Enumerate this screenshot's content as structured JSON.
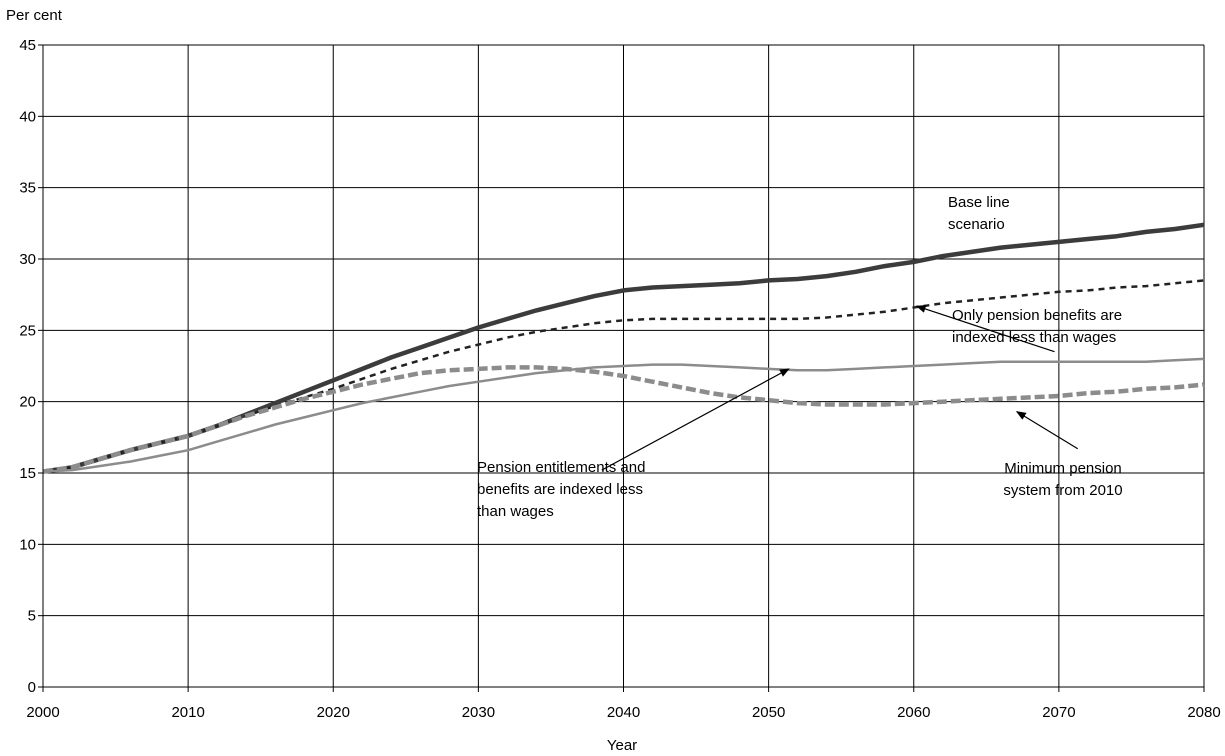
{
  "chart_data": {
    "type": "line",
    "title": "",
    "ylabel": "Per cent",
    "xlabel": "Year",
    "xlim": [
      2000,
      2080
    ],
    "ylim": [
      0,
      45
    ],
    "x_ticks": [
      2000,
      2010,
      2020,
      2030,
      2040,
      2050,
      2060,
      2070,
      2080
    ],
    "y_ticks": [
      0,
      5,
      10,
      15,
      20,
      25,
      30,
      35,
      40,
      45
    ],
    "x_tick_labels": [
      "2000",
      "2010",
      "2020",
      "2030",
      "2040",
      "2050",
      "2060",
      "2070",
      "2080"
    ],
    "y_tick_labels": [
      "0",
      "5",
      "10",
      "15",
      "20",
      "25",
      "30",
      "35",
      "40",
      "45"
    ],
    "grid": true,
    "legend": "none",
    "series": [
      {
        "key": "baseline",
        "color": "#3c3c3c",
        "style": "solid-thick",
        "x": [
          2000,
          2002,
          2004,
          2006,
          2008,
          2010,
          2012,
          2014,
          2016,
          2018,
          2020,
          2022,
          2024,
          2026,
          2028,
          2030,
          2032,
          2034,
          2036,
          2038,
          2040,
          2042,
          2044,
          2046,
          2048,
          2050,
          2052,
          2054,
          2056,
          2058,
          2060,
          2062,
          2064,
          2066,
          2068,
          2070,
          2072,
          2074,
          2076,
          2078,
          2080
        ],
        "values": [
          15.1,
          15.4,
          16.0,
          16.6,
          17.1,
          17.6,
          18.3,
          19.1,
          19.9,
          20.7,
          21.5,
          22.3,
          23.1,
          23.8,
          24.5,
          25.2,
          25.8,
          26.4,
          26.9,
          27.4,
          27.8,
          28.0,
          28.1,
          28.2,
          28.3,
          28.5,
          28.6,
          28.8,
          29.1,
          29.5,
          29.8,
          30.2,
          30.5,
          30.8,
          31.0,
          31.2,
          31.4,
          31.6,
          31.9,
          32.1,
          32.4
        ]
      },
      {
        "key": "only-pension-benefits",
        "color": "#222222",
        "style": "dotted",
        "x": [
          2000,
          2002,
          2004,
          2006,
          2008,
          2010,
          2012,
          2014,
          2016,
          2018,
          2020,
          2022,
          2024,
          2026,
          2028,
          2030,
          2032,
          2034,
          2036,
          2038,
          2040,
          2042,
          2044,
          2046,
          2048,
          2050,
          2052,
          2054,
          2056,
          2058,
          2060,
          2062,
          2064,
          2066,
          2068,
          2070,
          2072,
          2074,
          2076,
          2078,
          2080
        ],
        "values": [
          15.1,
          15.4,
          16.0,
          16.6,
          17.1,
          17.6,
          18.3,
          19.0,
          19.7,
          20.3,
          20.9,
          21.6,
          22.3,
          22.9,
          23.5,
          24.0,
          24.5,
          24.9,
          25.2,
          25.5,
          25.7,
          25.8,
          25.8,
          25.8,
          25.8,
          25.8,
          25.8,
          25.9,
          26.1,
          26.3,
          26.6,
          26.9,
          27.1,
          27.3,
          27.5,
          27.7,
          27.8,
          28.0,
          28.1,
          28.3,
          28.5
        ]
      },
      {
        "key": "pension-entitlements-and-benefits",
        "color": "#8c8c8c",
        "style": "solid",
        "x": [
          2000,
          2002,
          2004,
          2006,
          2008,
          2010,
          2012,
          2014,
          2016,
          2018,
          2020,
          2022,
          2024,
          2026,
          2028,
          2030,
          2032,
          2034,
          2036,
          2038,
          2040,
          2042,
          2044,
          2046,
          2048,
          2050,
          2052,
          2054,
          2056,
          2058,
          2060,
          2062,
          2064,
          2066,
          2068,
          2070,
          2072,
          2074,
          2076,
          2078,
          2080
        ],
        "values": [
          15.1,
          15.2,
          15.5,
          15.8,
          16.2,
          16.6,
          17.2,
          17.8,
          18.4,
          18.9,
          19.4,
          19.9,
          20.3,
          20.7,
          21.1,
          21.4,
          21.7,
          22.0,
          22.2,
          22.4,
          22.5,
          22.6,
          22.6,
          22.5,
          22.4,
          22.3,
          22.2,
          22.2,
          22.3,
          22.4,
          22.5,
          22.6,
          22.7,
          22.8,
          22.8,
          22.8,
          22.8,
          22.8,
          22.8,
          22.9,
          23.0
        ]
      },
      {
        "key": "minimum-pension-system",
        "color": "#8c8c8c",
        "style": "dashed-thick",
        "x": [
          2000,
          2002,
          2004,
          2006,
          2008,
          2010,
          2012,
          2014,
          2016,
          2018,
          2020,
          2022,
          2024,
          2026,
          2028,
          2030,
          2032,
          2034,
          2036,
          2038,
          2040,
          2042,
          2044,
          2046,
          2048,
          2050,
          2052,
          2054,
          2056,
          2058,
          2060,
          2062,
          2064,
          2066,
          2068,
          2070,
          2072,
          2074,
          2076,
          2078,
          2080
        ],
        "values": [
          15.1,
          15.4,
          16.0,
          16.6,
          17.1,
          17.6,
          18.3,
          19.0,
          19.6,
          20.2,
          20.7,
          21.2,
          21.6,
          22.0,
          22.2,
          22.3,
          22.4,
          22.4,
          22.3,
          22.1,
          21.8,
          21.4,
          21.0,
          20.6,
          20.3,
          20.1,
          19.9,
          19.8,
          19.8,
          19.8,
          19.9,
          20.0,
          20.1,
          20.2,
          20.3,
          20.4,
          20.6,
          20.7,
          20.9,
          21.0,
          21.2
        ]
      }
    ],
    "annotations": [
      {
        "key": "baseline",
        "lines": [
          "Base line",
          "scenario"
        ],
        "arrow": null
      },
      {
        "key": "only-pension-benefits",
        "lines": [
          "Only pension benefits are",
          "indexed less than wages"
        ],
        "arrow": {
          "from": [
            2069.7,
            23.5
          ],
          "to": [
            2060.2,
            26.7
          ]
        }
      },
      {
        "key": "pension-entitlements-and-benefits",
        "lines": [
          "Pension entitlements and",
          "benefits are indexed less",
          "than wages"
        ],
        "arrow": {
          "from": [
            2038.5,
            15.2
          ],
          "to": [
            2051.4,
            22.3
          ]
        }
      },
      {
        "key": "minimum-pension-system",
        "lines": [
          "Minimum pension",
          "system from 2010"
        ],
        "arrow": {
          "from": [
            2071.3,
            16.7
          ],
          "to": [
            2067.1,
            19.3
          ]
        }
      }
    ]
  }
}
